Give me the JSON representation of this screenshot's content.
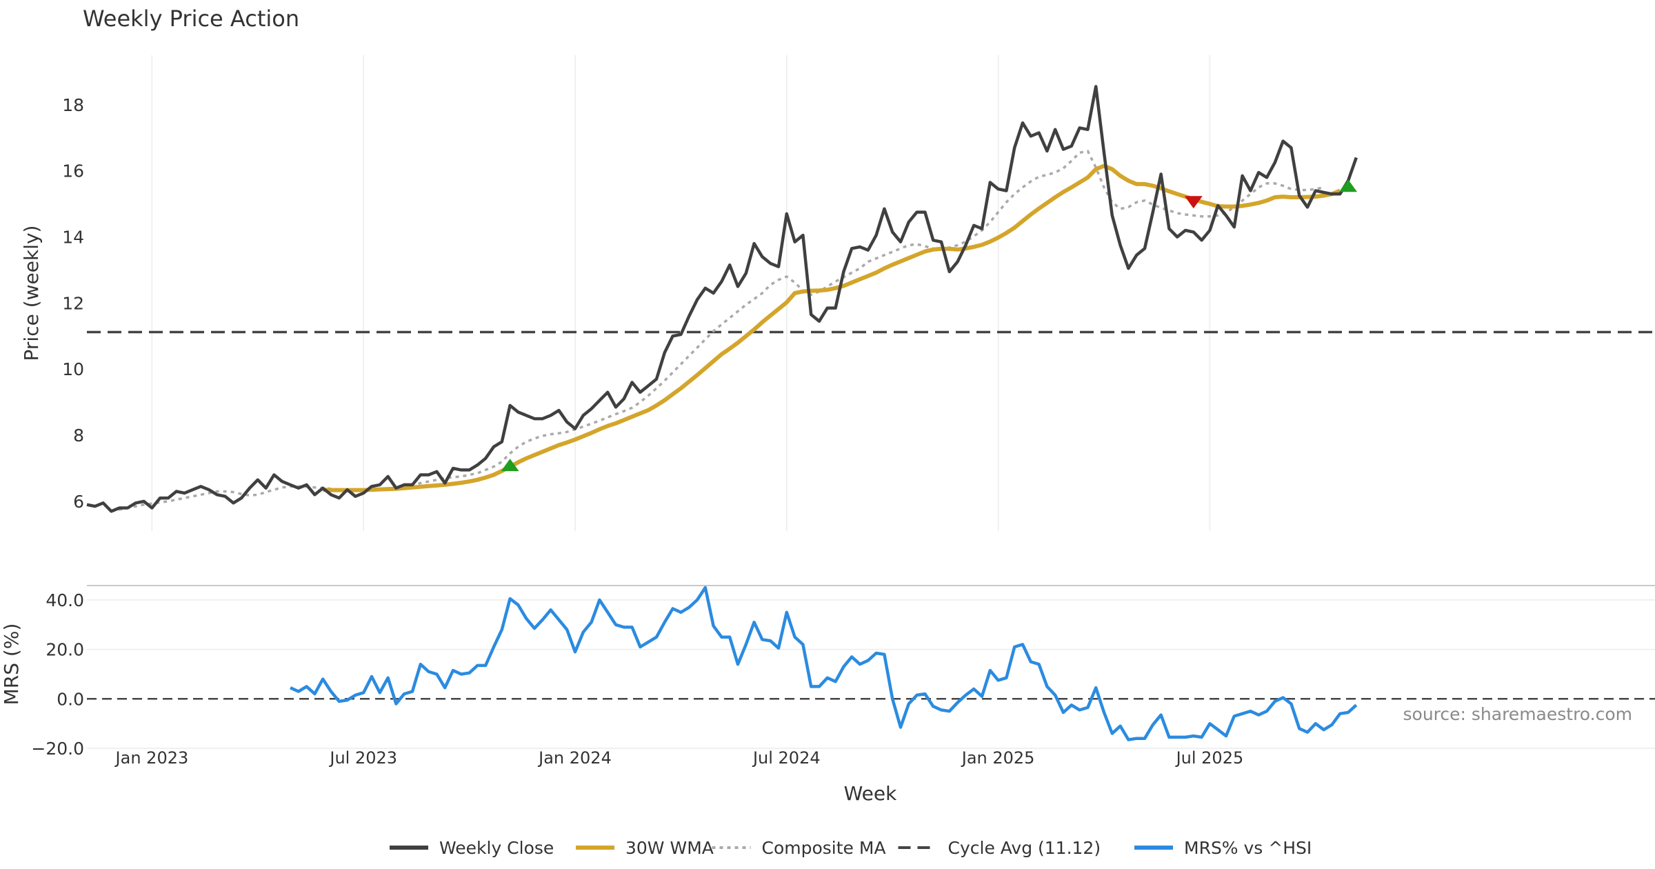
{
  "chart_data": {
    "type": "line",
    "title": "Weekly Price Action",
    "xlabel": "Week",
    "x_ticks": [
      "Jan 2023",
      "Jul 2023",
      "Jan 2024",
      "Jul 2024",
      "Jan 2025",
      "Jul 2025"
    ],
    "source": "source: sharemaestro.com",
    "price_panel": {
      "ylabel": "Price (weekly)",
      "ylim": [
        5.1,
        19.5
      ],
      "yticks": [
        6,
        8,
        10,
        12,
        14,
        16,
        18
      ],
      "ytick_labels": [
        "6",
        "8",
        "10",
        "12",
        "14",
        "16",
        "18"
      ],
      "x_start_week": 0,
      "series": [
        {
          "name": "Weekly Close",
          "color": "#404040",
          "style": "solid",
          "values": [
            5.9,
            5.85,
            5.95,
            5.7,
            5.8,
            5.8,
            5.95,
            6.0,
            5.8,
            6.1,
            6.1,
            6.3,
            6.25,
            6.35,
            6.45,
            6.35,
            6.2,
            6.15,
            5.95,
            6.1,
            6.4,
            6.65,
            6.4,
            6.8,
            6.6,
            6.5,
            6.4,
            6.5,
            6.2,
            6.4,
            6.2,
            6.1,
            6.35,
            6.15,
            6.25,
            6.45,
            6.5,
            6.75,
            6.4,
            6.5,
            6.5,
            6.8,
            6.8,
            6.9,
            6.55,
            7.0,
            6.95,
            6.95,
            7.1,
            7.3,
            7.65,
            7.8,
            8.9,
            8.7,
            8.6,
            8.5,
            8.5,
            8.6,
            8.75,
            8.4,
            8.2,
            8.6,
            8.8,
            9.05,
            9.3,
            8.85,
            9.1,
            9.6,
            9.3,
            9.5,
            9.7,
            10.5,
            11.0,
            11.05,
            11.6,
            12.1,
            12.45,
            12.3,
            12.65,
            13.15,
            12.5,
            12.9,
            13.8,
            13.4,
            13.2,
            13.1,
            14.7,
            13.85,
            14.05,
            11.65,
            11.45,
            11.85,
            11.85,
            12.95,
            13.65,
            13.7,
            13.6,
            14.05,
            14.85,
            14.15,
            13.85,
            14.45,
            14.75,
            14.75,
            13.9,
            13.85,
            12.95,
            13.25,
            13.75,
            14.35,
            14.25,
            15.65,
            15.45,
            15.4,
            16.7,
            17.45,
            17.05,
            17.15,
            16.6,
            17.25,
            16.65,
            16.75,
            17.3,
            17.25,
            18.55,
            16.55,
            14.65,
            13.75,
            13.05,
            13.45,
            13.65,
            14.75,
            15.9,
            14.25,
            14.0,
            14.2,
            14.15,
            13.9,
            14.2,
            14.95,
            14.65,
            14.3,
            15.85,
            15.4,
            15.95,
            15.8,
            16.25,
            16.9,
            16.7,
            15.25,
            14.9,
            15.4,
            15.35,
            15.3,
            15.3,
            15.7,
            16.4
          ]
        },
        {
          "name": "30W WMA",
          "color": "#d4a52a",
          "style": "solid",
          "x_start_week": 29,
          "values": [
            6.35,
            6.34,
            6.34,
            6.34,
            6.34,
            6.34,
            6.35,
            6.36,
            6.37,
            6.38,
            6.4,
            6.42,
            6.44,
            6.46,
            6.48,
            6.5,
            6.53,
            6.56,
            6.6,
            6.65,
            6.72,
            6.8,
            6.92,
            7.05,
            7.18,
            7.3,
            7.4,
            7.5,
            7.6,
            7.7,
            7.78,
            7.87,
            7.97,
            8.07,
            8.18,
            8.28,
            8.36,
            8.46,
            8.56,
            8.66,
            8.76,
            8.9,
            9.06,
            9.24,
            9.42,
            9.62,
            9.82,
            10.03,
            10.24,
            10.45,
            10.62,
            10.8,
            11.0,
            11.2,
            11.42,
            11.62,
            11.82,
            12.02,
            12.3,
            12.35,
            12.37,
            12.38,
            12.4,
            12.45,
            12.52,
            12.62,
            12.72,
            12.82,
            12.92,
            13.05,
            13.16,
            13.26,
            13.36,
            13.46,
            13.56,
            13.62,
            13.64,
            13.64,
            13.62,
            13.65,
            13.7,
            13.76,
            13.86,
            13.98,
            14.12,
            14.28,
            14.48,
            14.68,
            14.86,
            15.03,
            15.2,
            15.36,
            15.5,
            15.65,
            15.8,
            16.05,
            16.15,
            16.05,
            15.85,
            15.7,
            15.6,
            15.6,
            15.55,
            15.47,
            15.38,
            15.3,
            15.22,
            15.14,
            15.06,
            15.0,
            14.93,
            14.92,
            14.92,
            14.94,
            14.98,
            15.03,
            15.1,
            15.2,
            15.22,
            15.2,
            15.2,
            15.21,
            15.22,
            15.25,
            15.3,
            15.4
          ]
        },
        {
          "name": "Composite MA",
          "color": "#aaaaaa",
          "style": "dotted",
          "x_start_week": 3,
          "values": [
            5.7,
            5.75,
            5.8,
            5.85,
            5.9,
            5.93,
            5.97,
            6.0,
            6.05,
            6.1,
            6.15,
            6.2,
            6.25,
            6.3,
            6.3,
            6.28,
            6.22,
            6.18,
            6.2,
            6.28,
            6.35,
            6.42,
            6.45,
            6.45,
            6.44,
            6.42,
            6.4,
            6.38,
            6.36,
            6.35,
            6.33,
            6.32,
            6.33,
            6.35,
            6.38,
            6.42,
            6.47,
            6.5,
            6.55,
            6.6,
            6.65,
            6.7,
            6.73,
            6.75,
            6.8,
            6.85,
            6.95,
            7.05,
            7.2,
            7.45,
            7.65,
            7.8,
            7.9,
            7.98,
            8.03,
            8.06,
            8.1,
            8.18,
            8.26,
            8.35,
            8.44,
            8.54,
            8.64,
            8.73,
            8.83,
            9.0,
            9.2,
            9.42,
            9.65,
            9.9,
            10.15,
            10.4,
            10.65,
            10.9,
            11.15,
            11.35,
            11.55,
            11.75,
            11.95,
            12.12,
            12.3,
            12.55,
            12.7,
            12.8,
            12.62,
            12.38,
            12.25,
            12.35,
            12.5,
            12.65,
            12.78,
            12.92,
            13.05,
            13.25,
            13.35,
            13.45,
            13.55,
            13.65,
            13.75,
            13.78,
            13.72,
            13.65,
            13.62,
            13.68,
            13.75,
            13.86,
            14.02,
            14.2,
            14.45,
            14.75,
            15.05,
            15.3,
            15.5,
            15.68,
            15.82,
            15.88,
            15.95,
            16.08,
            16.3,
            16.55,
            16.6,
            16.1,
            15.5,
            15.05,
            14.85,
            14.9,
            15.05,
            15.1,
            14.98,
            14.88,
            14.8,
            14.72,
            14.68,
            14.65,
            14.62,
            14.62,
            14.65,
            14.74,
            14.9,
            15.1,
            15.3,
            15.5,
            15.62,
            15.62,
            15.55,
            15.45,
            15.42,
            15.42,
            15.45,
            15.5
          ]
        }
      ],
      "cycle_avg": {
        "name": "Cycle Avg (11.12)",
        "value": 11.12,
        "color": "#444444"
      },
      "markers": [
        {
          "type": "buy",
          "week": 52,
          "price": 7.1,
          "color": "#1f9e1f"
        },
        {
          "type": "sell",
          "week": 136,
          "price": 15.05,
          "color": "#cc1111"
        },
        {
          "type": "buy",
          "week": 155,
          "price": 15.55,
          "color": "#1f9e1f"
        }
      ]
    },
    "mrs_panel": {
      "ylabel": "MRS (%)",
      "ylim": [
        -20,
        45
      ],
      "yticks": [
        -20,
        0,
        20,
        40
      ],
      "ytick_labels": [
        "−20.0",
        "0.0",
        "20.0",
        "40.0"
      ],
      "series": [
        {
          "name": "MRS% vs ^HSI",
          "color": "#2b8be0",
          "x_start_week": 25,
          "values": [
            4.5,
            3,
            5,
            2,
            8,
            3,
            -1,
            -0.5,
            1.5,
            2.5,
            9,
            2.5,
            8.5,
            -2,
            2,
            3,
            14,
            11,
            10,
            4.5,
            11.5,
            10,
            10.5,
            13.5,
            13.5,
            21,
            28,
            40.5,
            38,
            32.5,
            28.5,
            32,
            36,
            32,
            28,
            19,
            27,
            31,
            40,
            35,
            30,
            29,
            29,
            21,
            23,
            25,
            31,
            36.5,
            35,
            37,
            40,
            45,
            29.5,
            25,
            25,
            14,
            22,
            31,
            24,
            23.5,
            20.5,
            35,
            25,
            22,
            5,
            5,
            8.5,
            7,
            13,
            17,
            14,
            15.5,
            18.5,
            18,
            0,
            -11.5,
            -2,
            1.5,
            2,
            -3,
            -4.5,
            -5,
            -1.5,
            1.5,
            4,
            1,
            11.5,
            7.5,
            8.5,
            21,
            22,
            15,
            14,
            5,
            1.5,
            -5.5,
            -2.5,
            -4.5,
            -3.5,
            4.5,
            -5.5,
            -14,
            -11,
            -16.5,
            -16,
            -16,
            -10.5,
            -6.5,
            -15.5,
            -15.5,
            -15.5,
            -15,
            -15.5,
            -10,
            -12.5,
            -15,
            -7,
            -6,
            -5,
            -6.5,
            -5,
            -1,
            0.5,
            -2,
            -12,
            -13.5,
            -10,
            -12.5,
            -10.5,
            -6,
            -5.5,
            -2.5
          ]
        }
      ]
    },
    "legend": [
      {
        "label": "Weekly Close",
        "color": "#404040",
        "style": "solid"
      },
      {
        "label": "30W WMA",
        "color": "#d4a52a",
        "style": "solid"
      },
      {
        "label": "Composite MA",
        "color": "#aaaaaa",
        "style": "dotted"
      },
      {
        "label": "Cycle Avg (11.12)",
        "color": "#444444",
        "style": "dashed"
      },
      {
        "label": "MRS% vs ^HSI",
        "color": "#2b8be0",
        "style": "solid"
      }
    ]
  }
}
